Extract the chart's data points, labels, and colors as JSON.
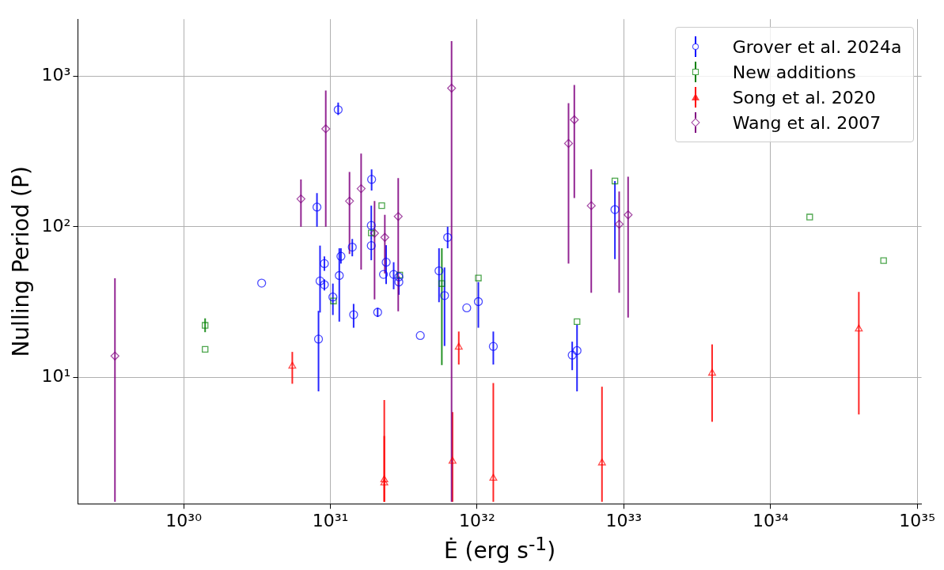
{
  "chart_data": {
    "type": "scatter",
    "xlabel": "Ė (erg s$^{-1}$)",
    "ylabel": "Nulling Period (P)",
    "log": "xy",
    "grid": true,
    "legend": "top right",
    "xlim": [
      1.9e+29,
      1.07e+35
    ],
    "ylim": [
      1.45,
      2380
    ],
    "xticks": [
      {
        "value": 1e+30,
        "label": "10³⁰"
      },
      {
        "value": 1e+31,
        "label": "10³¹"
      },
      {
        "value": 1e+32,
        "label": "10³²"
      },
      {
        "value": 1e+33,
        "label": "10³³"
      },
      {
        "value": 1e+34,
        "label": "10³⁴"
      },
      {
        "value": 1e+35,
        "label": "10³⁵"
      }
    ],
    "yticks": [
      {
        "value": 10,
        "label": "10¹"
      },
      {
        "value": 100,
        "label": "10²"
      },
      {
        "value": 1000,
        "label": "10³"
      }
    ],
    "series": [
      {
        "name": "Grover et al. 2024a",
        "color": "#0000ff",
        "marker": "circle",
        "x": [
          3.4e+30,
          8.1e+30,
          1.13e+31,
          1.91e+31,
          1.9e+31,
          1.9e+31,
          8.5e+30,
          9.1e+30,
          9.1e+30,
          8.3e+30,
          1.04e+31,
          1.15e+31,
          1.18e+31,
          1.41e+31,
          1.44e+31,
          2.1e+31,
          2.3e+31,
          2.4e+31,
          2.7e+31,
          2.93e+31,
          2.93e+31,
          4.1e+31,
          5.5e+31,
          6e+31,
          6.3e+31,
          8.5e+31,
          1.02e+32,
          1.29e+32,
          4.45e+32,
          4.8e+32,
          8.7e+32
        ],
        "values": [
          42.3,
          135,
          597,
          206,
          102,
          75,
          43.7,
          57,
          41.3,
          18,
          34.2,
          47.5,
          63.7,
          73.3,
          26.1,
          27.1,
          48.3,
          58.2,
          48.3,
          43,
          46.5,
          19,
          51,
          35,
          85,
          29,
          31.9,
          16.1,
          14.1,
          15.1,
          130
        ],
        "errors": [
          null,
          [
            100,
            167
          ],
          [
            550,
            665
          ],
          [
            174,
            240
          ],
          [
            82,
            138
          ],
          [
            60,
            82
          ],
          [
            27,
            75
          ],
          [
            51,
            63.6
          ],
          [
            37.8,
            44.8
          ],
          [
            8.1,
            27.7
          ],
          [
            26,
            42
          ],
          [
            23.5,
            72
          ],
          [
            57,
            72
          ],
          [
            63.7,
            83
          ],
          [
            21.4,
            30.8
          ],
          [
            25.2,
            29
          ],
          null,
          [
            41.7,
            75.5
          ],
          [
            38.5,
            58.2
          ],
          [
            35.4,
            46.9
          ],
          null,
          null,
          [
            31.6,
            72
          ],
          [
            16.2,
            53.7
          ],
          [
            72,
            100
          ],
          null,
          [
            21.4,
            43
          ],
          [
            12.2,
            20.2
          ],
          [
            11.2,
            17.3
          ],
          [
            8.1,
            22.4
          ],
          [
            61,
            201
          ]
        ]
      },
      {
        "name": "New additions",
        "color": "#008000",
        "marker": "square",
        "x": [
          1.4e+30,
          1.4e+30,
          1.05e+31,
          2.24e+31,
          1.9e+31,
          2.97e+31,
          5.75e+31,
          1.02e+32,
          4.8e+32,
          8.7e+32,
          1.85e+34,
          5.9e+34
        ],
        "values": [
          22.2,
          15.4,
          32.2,
          138,
          91,
          47.8,
          42,
          45.7,
          23.5,
          201,
          116,
          59.7
        ],
        "errors": [
          [
            20,
            24.7
          ],
          null,
          null,
          null,
          null,
          null,
          [
            12.1,
            72
          ],
          null,
          null,
          null,
          null,
          null
        ]
      },
      {
        "name": "Song et al. 2020",
        "color": "#ff0000",
        "marker": "triangle",
        "x": [
          5.5e+30,
          2.33e+31,
          2.33e+31,
          6.8e+31,
          7.5e+31,
          1.29e+32,
          7.1e+32,
          4e+33,
          4e+34
        ],
        "values": [
          11.9,
          2.1,
          2.0,
          2.79,
          15.9,
          2.15,
          2.72,
          10.7,
          21
        ],
        "errors": [
          [
            9.1,
            14.8
          ],
          [
            1.5,
            7.1
          ],
          [
            1.5,
            4.1
          ],
          [
            1.5,
            5.9
          ],
          [
            12.2,
            20.2
          ],
          [
            1.5,
            9.2
          ],
          [
            1.5,
            8.7
          ],
          [
            5.1,
            16.6
          ],
          [
            5.7,
            37
          ]
        ]
      },
      {
        "name": "Wang et al. 2007",
        "color": "#800080",
        "marker": "diamond",
        "x": [
          3.4e+29,
          6.3e+30,
          9.3e+30,
          1.35e+31,
          1.62e+31,
          2e+31,
          2.35e+31,
          2.9e+31,
          6.7e+31,
          4.2e+32,
          4.6e+32,
          6e+32,
          9.3e+32,
          1.07e+33
        ],
        "values": [
          13.9,
          153,
          446,
          148,
          179,
          90.6,
          85,
          117,
          830,
          357,
          512,
          138,
          104,
          120
        ],
        "errors": [
          [
            1.5,
            45.5
          ],
          [
            100,
            206
          ],
          [
            100,
            800
          ],
          [
            66,
            231
          ],
          [
            52,
            306
          ],
          [
            33,
            148
          ],
          [
            49,
            120
          ],
          [
            27.5,
            210
          ],
          [
            1.5,
            1700
          ],
          [
            57,
            660
          ],
          [
            155,
            870
          ],
          [
            36.5,
            240
          ],
          [
            36.5,
            171
          ],
          [
            25,
            215
          ]
        ]
      }
    ]
  }
}
